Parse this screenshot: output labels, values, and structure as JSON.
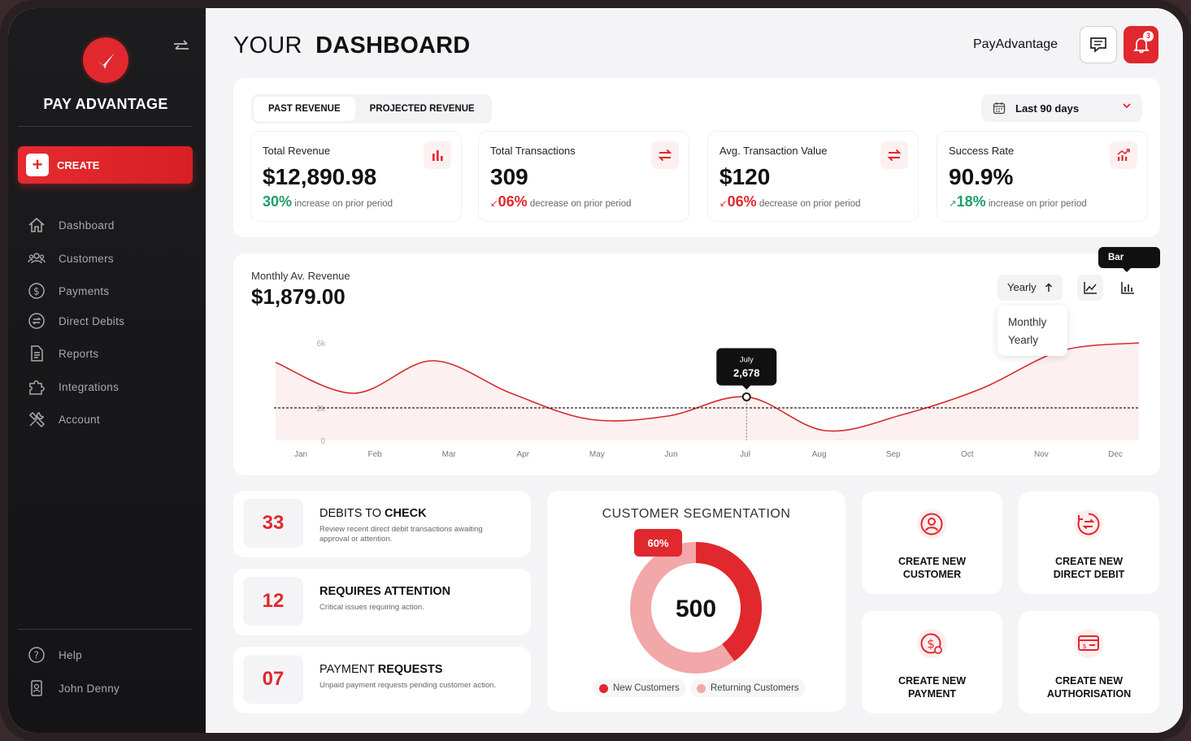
{
  "sidebar": {
    "brand": "PAY ADVANTAGE",
    "create_label": "CREATE",
    "nav": [
      {
        "label": "Dashboard",
        "icon": "home-icon"
      },
      {
        "label": "Customers",
        "icon": "users-icon"
      },
      {
        "label": "Payments",
        "icon": "dollar-icon"
      },
      {
        "label": "Direct Debits",
        "icon": "exchange-icon"
      },
      {
        "label": "Reports",
        "icon": "document-icon"
      },
      {
        "label": "Integrations",
        "icon": "puzzle-icon"
      },
      {
        "label": "Account",
        "icon": "tools-icon"
      }
    ],
    "help_label": "Help",
    "user_name": "John Denny"
  },
  "header": {
    "title_light": "YOUR",
    "title_bold": "DASHBOARD",
    "brand": "PayAdvantage",
    "notification_count": "3"
  },
  "kpi_panel": {
    "tabs": [
      "PAST REVENUE",
      "PROJECTED REVENUE"
    ],
    "range_label": "Last 90 days",
    "cards": [
      {
        "label": "Total Revenue",
        "value": "$12,890.98",
        "pct": "30%",
        "delta_text": "increase on prior period",
        "direction": "up",
        "color": "#1f9d6a"
      },
      {
        "label": "Total Transactions",
        "value": "309",
        "pct": "06%",
        "delta_text": "decrease on prior period",
        "direction": "down",
        "color": "#e0282e"
      },
      {
        "label": "Avg. Transaction Value",
        "value": "$120",
        "pct": "06%",
        "delta_text": "decrease on prior period",
        "direction": "down",
        "color": "#e0282e"
      },
      {
        "label": "Success Rate",
        "value": "90.9%",
        "pct": "18%",
        "delta_text": "increase on prior period",
        "direction": "up",
        "color": "#1f9d6a"
      }
    ]
  },
  "revenue_chart": {
    "label": "Monthly Av. Revenue",
    "value": "$1,879.00",
    "period_selected": "Yearly",
    "period_options": [
      "Monthly",
      "Yearly"
    ],
    "bar_chart_tooltip": "Bar Chart",
    "tooltip_month": "July",
    "tooltip_value": "2,678"
  },
  "chart_data": {
    "type": "line",
    "categories": [
      "Jan",
      "Feb",
      "Mar",
      "Apr",
      "May",
      "Jun",
      "Jul",
      "Aug",
      "Sep",
      "Oct",
      "Nov",
      "Dec"
    ],
    "x": [
      "Jan",
      "Feb",
      "Mar",
      "Apr",
      "May",
      "Jun",
      "Jul",
      "Aug",
      "Sep",
      "Oct",
      "Nov",
      "Dec"
    ],
    "values": [
      4800,
      2900,
      4900,
      2900,
      1300,
      1500,
      2678,
      600,
      1600,
      3200,
      5500,
      6000
    ],
    "y_ticks": [
      "0",
      "2k",
      "6k"
    ],
    "reference_line": 2000,
    "ylim": [
      0,
      7000
    ],
    "highlight_index": 6,
    "line_color": "#d42a2e",
    "fill_color": "#fdeeee"
  },
  "stats": [
    {
      "number": "33",
      "title_light": "DEBITS TO ",
      "title_bold": "CHECK",
      "desc": "Review recent direct debit transactions awaiting approval or attention."
    },
    {
      "number": "12",
      "title_light": "",
      "title_bold": "REQUIRES ATTENTION",
      "desc": "Critical issues requiring action."
    },
    {
      "number": "07",
      "title_light": "PAYMENT ",
      "title_bold": "REQUESTS",
      "desc": "Unpaid payment requests pending customer action."
    }
  ],
  "segmentation": {
    "title": "CUSTOMER SEGMENTATION",
    "total": "500",
    "badge": "60%",
    "new_share": 0.4,
    "returning_share": 0.6,
    "legend": [
      {
        "label": "New Customers",
        "color": "#e0282e"
      },
      {
        "label": "Returning Customers",
        "color": "#f2a7a9"
      }
    ]
  },
  "actions": [
    {
      "line1": "CREATE NEW",
      "line2": "CUSTOMER",
      "icon": "user-circle-icon"
    },
    {
      "line1": "CREATE NEW",
      "line2": "DIRECT DEBIT",
      "icon": "exchange-circle-icon"
    },
    {
      "line1": "CREATE NEW",
      "line2": "PAYMENT",
      "icon": "dollar-circle-icon"
    },
    {
      "line1": "CREATE NEW",
      "line2": "AUTHORISATION",
      "icon": "card-icon"
    }
  ]
}
